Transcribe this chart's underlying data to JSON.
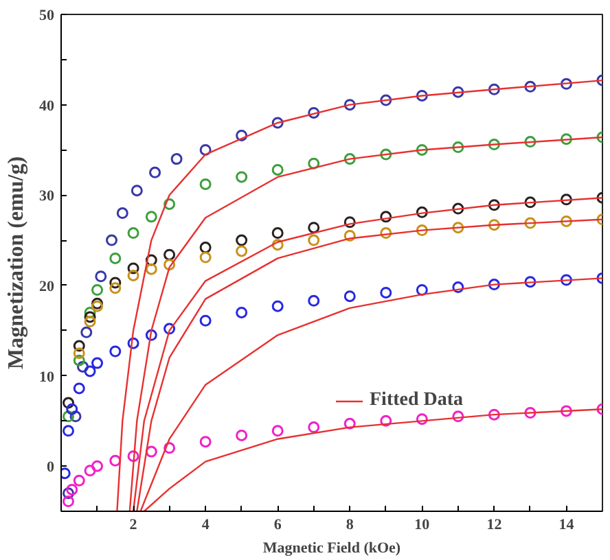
{
  "chart_data": {
    "type": "scatter",
    "xlabel": "Magnetic Field (kOe)",
    "ylabel": "Magnetization (emu/g)",
    "xlim": [
      0,
      15
    ],
    "ylim": [
      -5,
      50
    ],
    "xticks": [
      {
        "value": 1,
        "label": null
      },
      2,
      {
        "value": 3,
        "label": null
      },
      4,
      {
        "value": 5,
        "label": null
      },
      6,
      {
        "value": 7,
        "label": null
      },
      8,
      {
        "value": 9,
        "label": null
      },
      10,
      {
        "value": 11,
        "label": null
      },
      12,
      {
        "value": 13,
        "label": null
      },
      14
    ],
    "yticks": [
      {
        "value": -5,
        "label": null
      },
      0,
      {
        "value": 5,
        "label": null
      },
      10,
      {
        "value": 15,
        "label": null
      },
      20,
      {
        "value": 25,
        "label": null
      },
      30,
      {
        "value": 35,
        "label": null
      },
      40,
      {
        "value": 45,
        "label": null
      },
      50
    ],
    "marker": "circle",
    "grid": false,
    "legend": "right",
    "series": [
      {
        "color": "#3838a8",
        "x": [
          0.2,
          0.4,
          0.6,
          0.7,
          1.1,
          1.4,
          1.7,
          2.1,
          2.6,
          3.2,
          4,
          5,
          6,
          7,
          8,
          9,
          10,
          11,
          12,
          13,
          14,
          15
        ],
        "values": [
          -3,
          5.5,
          11,
          14.8,
          21,
          25,
          28,
          30.5,
          32.5,
          34,
          35,
          36.6,
          38,
          39.1,
          40,
          40.5,
          41,
          41.4,
          41.7,
          42,
          42.3,
          42.7
        ]
      },
      {
        "color": "#3ca03c",
        "x": [
          0.2,
          0.5,
          0.8,
          1,
          1.5,
          2,
          2.5,
          3,
          4,
          5,
          6,
          7,
          8,
          9,
          10,
          11,
          12,
          13,
          14,
          15
        ],
        "values": [
          5.5,
          11.7,
          17,
          19.5,
          23,
          25.8,
          27.6,
          29,
          31.2,
          32,
          32.8,
          33.5,
          34,
          34.5,
          35,
          35.3,
          35.6,
          35.9,
          36.2,
          36.4
        ]
      },
      {
        "color": "#2a2020",
        "x": [
          0.2,
          0.5,
          0.8,
          1,
          1.5,
          2,
          2.5,
          3,
          4,
          5,
          6,
          7,
          8,
          9,
          10,
          11,
          12,
          13,
          14,
          15
        ],
        "values": [
          7,
          13.3,
          16.5,
          18,
          20.3,
          21.9,
          22.8,
          23.4,
          24.2,
          25,
          25.8,
          26.4,
          27,
          27.6,
          28.1,
          28.5,
          28.9,
          29.2,
          29.5,
          29.7
        ]
      },
      {
        "color": "#c89018",
        "x": [
          0.5,
          0.8,
          1,
          1.5,
          2,
          2.5,
          3,
          4,
          5,
          6,
          7,
          8,
          9,
          10,
          11,
          12,
          13,
          14,
          15
        ],
        "values": [
          12.5,
          16,
          17.7,
          19.7,
          21.1,
          21.8,
          22.3,
          23.1,
          23.8,
          24.5,
          25,
          25.5,
          25.8,
          26.1,
          26.4,
          26.7,
          26.9,
          27.1,
          27.3
        ]
      },
      {
        "color": "#2828e0",
        "x": [
          0.1,
          0.2,
          0.3,
          0.5,
          0.8,
          1,
          1.5,
          2,
          2.5,
          3,
          4,
          5,
          6,
          7,
          8,
          9,
          10,
          11,
          12,
          13,
          14,
          15
        ],
        "values": [
          -0.8,
          3.9,
          6.3,
          8.6,
          10.5,
          11.4,
          12.7,
          13.6,
          14.5,
          15.2,
          16.1,
          17,
          17.7,
          18.3,
          18.8,
          19.2,
          19.5,
          19.8,
          20.1,
          20.4,
          20.6,
          20.8
        ]
      },
      {
        "color": "#f020c8",
        "x": [
          0.2,
          0.3,
          0.5,
          0.8,
          1,
          1.5,
          2,
          2.5,
          3,
          4,
          5,
          6,
          7,
          8,
          9,
          10,
          11,
          12,
          13,
          14,
          15
        ],
        "values": [
          -3.9,
          -2.6,
          -1.6,
          -0.5,
          0,
          0.6,
          1.1,
          1.6,
          2,
          2.7,
          3.4,
          3.9,
          4.3,
          4.7,
          5,
          5.2,
          5.5,
          5.7,
          5.9,
          6.1,
          6.3
        ]
      },
      {
        "type": "line",
        "marker": "none",
        "name": "Fitted Data",
        "color": "#e83030",
        "x": [
          1.55,
          1.7,
          2,
          2.5,
          3,
          4,
          6,
          8,
          10,
          12,
          15
        ],
        "values": [
          -5,
          5,
          15,
          25,
          30,
          34.5,
          38,
          40,
          41,
          41.7,
          42.7
        ]
      },
      {
        "type": "line",
        "marker": "none",
        "color": "#e83030",
        "x": [
          1.9,
          2.1,
          2.5,
          3,
          4,
          6,
          8,
          10,
          12,
          15
        ],
        "values": [
          -5,
          5,
          15,
          22,
          27.5,
          32,
          34,
          35,
          35.6,
          36.4
        ]
      },
      {
        "type": "line",
        "marker": "none",
        "color": "#e83030",
        "x": [
          2,
          2.3,
          3,
          4,
          6,
          8,
          10,
          12,
          15
        ],
        "values": [
          -5,
          5,
          15,
          20.5,
          24.8,
          26.8,
          28,
          28.9,
          29.7
        ]
      },
      {
        "type": "line",
        "marker": "none",
        "color": "#e83030",
        "x": [
          2.1,
          2.5,
          3,
          4,
          6,
          8,
          10,
          12,
          15
        ],
        "values": [
          -5,
          5,
          12,
          18.5,
          23,
          25.2,
          26.1,
          26.7,
          27.3
        ]
      },
      {
        "type": "line",
        "marker": "none",
        "color": "#e83030",
        "x": [
          2.2,
          3,
          4,
          6,
          8,
          10,
          12,
          15
        ],
        "values": [
          -5,
          3,
          9,
          14.5,
          17.5,
          19,
          20.1,
          20.8
        ]
      },
      {
        "type": "line",
        "marker": "none",
        "color": "#e83030",
        "x": [
          2.3,
          3,
          4,
          6,
          8,
          10,
          12,
          15
        ],
        "values": [
          -5,
          -2.5,
          0.5,
          3,
          4.3,
          5,
          5.7,
          6.3
        ]
      }
    ]
  }
}
